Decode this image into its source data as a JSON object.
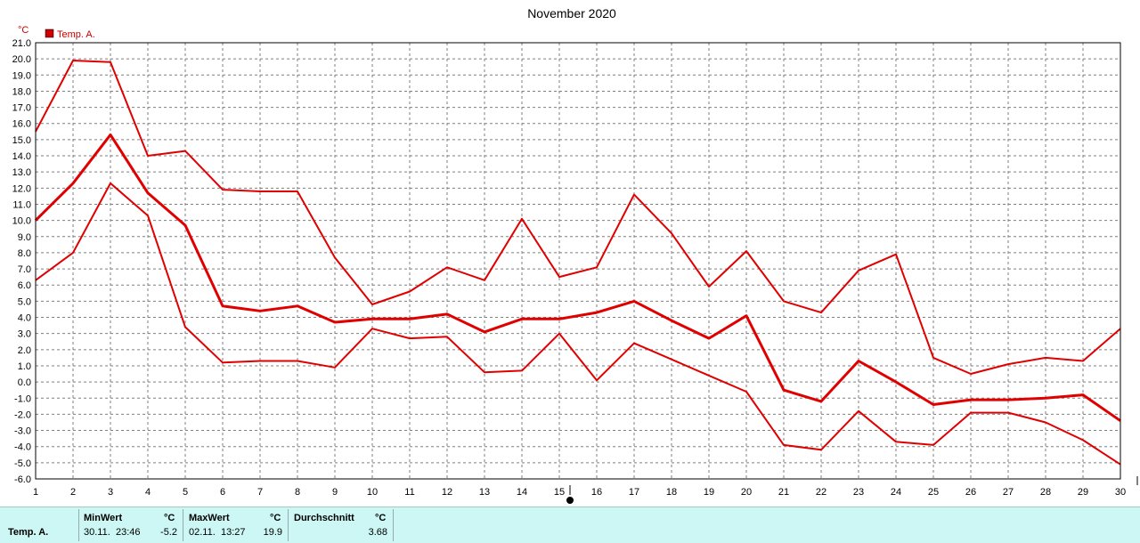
{
  "chart_data": {
    "type": "line",
    "title": "November 2020",
    "unit": "°C",
    "x": [
      1,
      2,
      3,
      4,
      5,
      6,
      7,
      8,
      9,
      10,
      11,
      12,
      13,
      14,
      15,
      16,
      17,
      18,
      19,
      20,
      21,
      22,
      23,
      24,
      25,
      26,
      27,
      28,
      29,
      30
    ],
    "ylim": [
      -6.0,
      21.0
    ],
    "ytick_step": 1.0,
    "grid": true,
    "legend": {
      "placement": "top-left",
      "entries": [
        "Temp. A."
      ]
    },
    "series": [
      {
        "name": "Temp. A.",
        "role": "max",
        "color": "#e00000",
        "values": [
          15.5,
          19.9,
          19.8,
          14.0,
          14.3,
          11.9,
          11.8,
          11.8,
          7.7,
          4.8,
          5.6,
          7.1,
          6.3,
          10.1,
          6.5,
          7.1,
          11.6,
          9.2,
          5.9,
          8.1,
          5.0,
          4.3,
          6.9,
          7.9,
          1.5,
          0.5,
          1.1,
          1.5,
          1.3,
          3.3
        ]
      },
      {
        "name": "Temp. A.",
        "role": "avg",
        "color": "#e00000",
        "values": [
          10.0,
          12.3,
          15.3,
          11.7,
          9.7,
          4.7,
          4.4,
          4.7,
          3.7,
          3.9,
          3.9,
          4.2,
          3.1,
          3.9,
          3.9,
          4.3,
          5.0,
          3.8,
          2.7,
          4.1,
          -0.5,
          -1.2,
          1.3,
          0.0,
          -1.4,
          -1.1,
          -1.1,
          -1.0,
          -0.8,
          -2.4
        ]
      },
      {
        "name": "Temp. A.",
        "role": "min",
        "color": "#e00000",
        "values": [
          6.3,
          8.0,
          12.3,
          10.3,
          3.4,
          1.2,
          1.3,
          1.3,
          0.9,
          3.3,
          2.7,
          2.8,
          0.6,
          0.7,
          3.0,
          0.1,
          2.4,
          1.4,
          0.4,
          -0.6,
          -3.9,
          -4.2,
          -1.8,
          -3.7,
          -3.9,
          -1.9,
          -1.9,
          -2.5,
          -3.6,
          -5.1
        ]
      }
    ]
  },
  "footer": {
    "series_label": "Temp. A.",
    "min": {
      "header": "MinWert",
      "unit": "°C",
      "date": "30.11.",
      "time": "23:46",
      "value": "-5.2"
    },
    "max": {
      "header": "MaxWert",
      "unit": "°C",
      "date": "02.11.",
      "time": "13:27",
      "value": "19.9"
    },
    "avg": {
      "header": "Durchschnitt",
      "unit": "°C",
      "value": "3.68"
    }
  }
}
